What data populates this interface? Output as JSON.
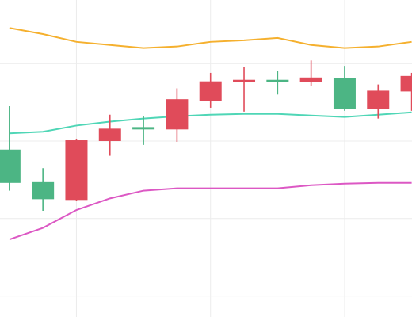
{
  "chart_data": {
    "type": "candlestick",
    "x": [
      0,
      1,
      2,
      3,
      4,
      5,
      6,
      7,
      8,
      9,
      10,
      11,
      12
    ],
    "open": [
      28.9,
      24.7,
      22.4,
      30.0,
      31.8,
      31.5,
      35.2,
      37.6,
      37.9,
      37.6,
      38.1,
      34.1,
      36.4
    ],
    "high": [
      34.5,
      26.5,
      30.3,
      33.4,
      33.2,
      36.8,
      38.8,
      39.6,
      39.1,
      40.4,
      39.7,
      37.3,
      38.8
    ],
    "low": [
      23.6,
      21.0,
      22.3,
      28.1,
      29.5,
      29.9,
      34.3,
      33.8,
      36.0,
      37.1,
      33.9,
      32.9,
      33.9
    ],
    "close": [
      24.6,
      22.5,
      30.1,
      31.6,
      31.5,
      35.4,
      37.7,
      37.9,
      37.6,
      38.2,
      34.1,
      36.5,
      38.4
    ],
    "up_color": "#e04b5a",
    "down_color": "#4cb584",
    "series": [
      {
        "color": "#f5b02e",
        "values": [
          44.6,
          43.8,
          42.8,
          42.4,
          42.0,
          42.2,
          42.8,
          43.0,
          43.3,
          42.4,
          42.0,
          42.2,
          42.8
        ]
      },
      {
        "color": "#4fd6b6",
        "values": [
          31.0,
          31.2,
          32.0,
          32.5,
          32.9,
          33.2,
          33.4,
          33.5,
          33.5,
          33.3,
          33.1,
          33.4,
          33.7
        ]
      },
      {
        "color": "#dc58c4",
        "values": [
          17.3,
          18.8,
          21.1,
          22.6,
          23.6,
          23.9,
          23.9,
          23.9,
          23.9,
          24.3,
          24.5,
          24.6,
          24.6
        ]
      }
    ],
    "xlim": [
      -0.28,
      12.01
    ],
    "ylim": [
      7.3,
      48.2
    ],
    "xticks": [
      2,
      6,
      10
    ],
    "yticks": [
      10,
      20,
      30,
      40
    ],
    "grid": true
  }
}
